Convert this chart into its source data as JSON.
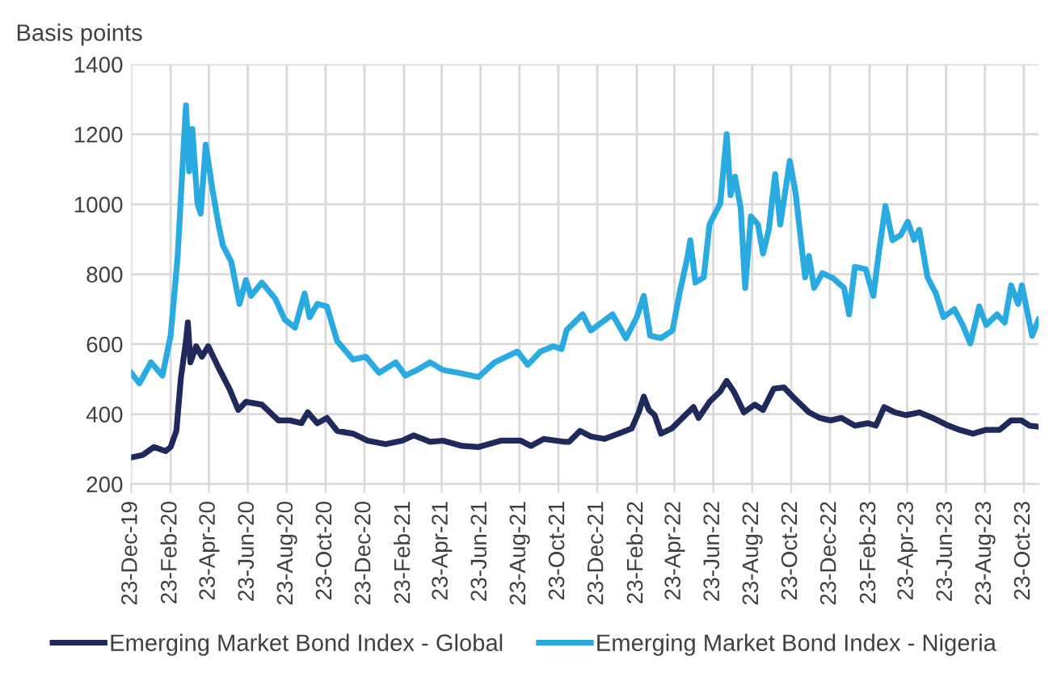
{
  "chart_data": {
    "type": "line",
    "ylabel": "Basis points",
    "ylim": [
      200,
      1400
    ],
    "yticks": [
      200,
      400,
      600,
      800,
      1000,
      1200,
      1400
    ],
    "xlim": [
      "2019-12-23",
      "2023-11-15"
    ],
    "xticks": [
      {
        "value": "2019-12-23",
        "label": "23-Dec-19"
      },
      {
        "value": "2020-02-23",
        "label": "23-Feb-20"
      },
      {
        "value": "2020-04-23",
        "label": "23-Apr-20"
      },
      {
        "value": "2020-06-23",
        "label": "23-Jun-20"
      },
      {
        "value": "2020-08-23",
        "label": "23-Aug-20"
      },
      {
        "value": "2020-10-23",
        "label": "23-Oct-20"
      },
      {
        "value": "2020-12-23",
        "label": "23-Dec-20"
      },
      {
        "value": "2021-02-23",
        "label": "23-Feb-21"
      },
      {
        "value": "2021-04-23",
        "label": "23-Apr-21"
      },
      {
        "value": "2021-06-23",
        "label": "23-Jun-21"
      },
      {
        "value": "2021-08-23",
        "label": "23-Aug-21"
      },
      {
        "value": "2021-10-23",
        "label": "23-Oct-21"
      },
      {
        "value": "2021-12-23",
        "label": "23-Dec-21"
      },
      {
        "value": "2022-02-23",
        "label": "23-Feb-22"
      },
      {
        "value": "2022-04-23",
        "label": "23-Apr-22"
      },
      {
        "value": "2022-06-23",
        "label": "23-Jun-22"
      },
      {
        "value": "2022-08-23",
        "label": "23-Aug-22"
      },
      {
        "value": "2022-10-23",
        "label": "23-Oct-22"
      },
      {
        "value": "2022-12-23",
        "label": "23-Dec-22"
      },
      {
        "value": "2023-02-23",
        "label": "23-Feb-23"
      },
      {
        "value": "2023-04-23",
        "label": "23-Apr-23"
      },
      {
        "value": "2023-06-23",
        "label": "23-Jun-23"
      },
      {
        "value": "2023-08-23",
        "label": "23-Aug-23"
      },
      {
        "value": "2023-10-23",
        "label": "23-Oct-23"
      }
    ],
    "grid": true,
    "legend": "bottom",
    "marker": "none",
    "line_style": "solid",
    "series": [
      {
        "name": "Emerging Market Bond Index - Global",
        "color": "#1f2a5c",
        "x": [
          "2019-12-23",
          "2020-01-10",
          "2020-01-28",
          "2020-02-15",
          "2020-02-23",
          "2020-03-03",
          "2020-03-10",
          "2020-03-18",
          "2020-03-21",
          "2020-03-25",
          "2020-04-03",
          "2020-04-12",
          "2020-04-22",
          "2020-05-08",
          "2020-05-25",
          "2020-06-08",
          "2020-06-20",
          "2020-07-15",
          "2020-08-10",
          "2020-08-28",
          "2020-09-15",
          "2020-09-25",
          "2020-10-10",
          "2020-10-25",
          "2020-11-10",
          "2020-12-05",
          "2020-12-28",
          "2021-01-25",
          "2021-02-20",
          "2021-03-10",
          "2021-04-05",
          "2021-04-25",
          "2021-05-25",
          "2021-06-20",
          "2021-07-25",
          "2021-08-25",
          "2021-09-10",
          "2021-09-30",
          "2021-10-20",
          "2021-11-01",
          "2021-11-09",
          "2021-11-26",
          "2021-12-13",
          "2022-01-03",
          "2022-01-25",
          "2022-02-15",
          "2022-02-26",
          "2022-03-06",
          "2022-03-14",
          "2022-03-23",
          "2022-04-02",
          "2022-04-19",
          "2022-05-10",
          "2022-05-23",
          "2022-05-31",
          "2022-06-17",
          "2022-07-04",
          "2022-07-14",
          "2022-07-25",
          "2022-08-10",
          "2022-08-27",
          "2022-09-09",
          "2022-09-26",
          "2022-10-12",
          "2022-10-30",
          "2022-11-20",
          "2022-12-07",
          "2022-12-24",
          "2023-01-10",
          "2023-01-31",
          "2023-02-20",
          "2023-03-05",
          "2023-03-18",
          "2023-04-04",
          "2023-04-21",
          "2023-05-12",
          "2023-06-02",
          "2023-06-23",
          "2023-07-14",
          "2023-08-04",
          "2023-08-25",
          "2023-09-15",
          "2023-10-03",
          "2023-10-19",
          "2023-11-01",
          "2023-11-15"
        ],
        "values": [
          276,
          283,
          306,
          294,
          306,
          352,
          503,
          609,
          662,
          548,
          594,
          564,
          594,
          533,
          473,
          412,
          435,
          427,
          382,
          382,
          374,
          405,
          374,
          389,
          352,
          344,
          324,
          314,
          324,
          339,
          321,
          324,
          309,
          306,
          324,
          324,
          309,
          329,
          324,
          321,
          321,
          352,
          336,
          329,
          344,
          359,
          405,
          450,
          412,
          397,
          344,
          359,
          397,
          420,
          389,
          435,
          465,
          495,
          465,
          405,
          427,
          412,
          473,
          476,
          442,
          405,
          389,
          382,
          389,
          367,
          374,
          367,
          420,
          405,
          397,
          405,
          389,
          370,
          355,
          344,
          355,
          355,
          382,
          382,
          367,
          364
        ]
      },
      {
        "name": "Emerging Market Bond Index - Nigeria",
        "color": "#29abe2",
        "x": [
          "2019-12-23",
          "2020-01-05",
          "2020-01-23",
          "2020-02-10",
          "2020-02-23",
          "2020-03-05",
          "2020-03-12",
          "2020-03-18",
          "2020-03-23",
          "2020-03-28",
          "2020-04-05",
          "2020-04-10",
          "2020-04-18",
          "2020-04-28",
          "2020-05-08",
          "2020-05-15",
          "2020-05-28",
          "2020-06-10",
          "2020-06-20",
          "2020-06-28",
          "2020-07-15",
          "2020-08-05",
          "2020-08-20",
          "2020-09-05",
          "2020-09-20",
          "2020-09-28",
          "2020-10-10",
          "2020-10-25",
          "2020-11-10",
          "2020-12-05",
          "2020-12-25",
          "2021-01-15",
          "2021-02-10",
          "2021-02-25",
          "2021-03-15",
          "2021-04-05",
          "2021-04-25",
          "2021-05-20",
          "2021-06-20",
          "2021-07-15",
          "2021-08-20",
          "2021-09-05",
          "2021-09-25",
          "2021-10-15",
          "2021-10-28",
          "2021-11-05",
          "2021-11-30",
          "2021-12-13",
          "2021-12-30",
          "2022-01-16",
          "2022-02-06",
          "2022-02-23",
          "2022-03-06",
          "2022-03-16",
          "2022-04-02",
          "2022-04-20",
          "2022-05-01",
          "2022-05-12",
          "2022-05-18",
          "2022-05-26",
          "2022-06-08",
          "2022-06-17",
          "2022-07-04",
          "2022-07-14",
          "2022-07-20",
          "2022-07-27",
          "2022-08-05",
          "2022-08-12",
          "2022-08-21",
          "2022-09-01",
          "2022-09-09",
          "2022-09-18",
          "2022-09-28",
          "2022-10-06",
          "2022-10-21",
          "2022-10-30",
          "2022-11-14",
          "2022-11-20",
          "2022-11-28",
          "2022-12-11",
          "2022-12-28",
          "2023-01-14",
          "2023-01-22",
          "2023-01-31",
          "2023-02-17",
          "2023-03-01",
          "2023-03-10",
          "2023-03-20",
          "2023-03-31",
          "2023-04-13",
          "2023-04-24",
          "2023-05-04",
          "2023-05-12",
          "2023-05-25",
          "2023-06-07",
          "2023-06-19",
          "2023-07-06",
          "2023-07-19",
          "2023-07-31",
          "2023-08-14",
          "2023-08-25",
          "2023-09-11",
          "2023-09-23",
          "2023-10-03",
          "2023-10-14",
          "2023-10-20",
          "2023-11-05",
          "2023-11-15"
        ],
        "values": [
          518,
          488,
          548,
          510,
          624,
          852,
          1086,
          1283,
          1094,
          1215,
          1003,
          973,
          1170,
          1048,
          942,
          882,
          836,
          715,
          783,
          738,
          776,
          730,
          670,
          647,
          745,
          677,
          715,
          708,
          609,
          556,
          564,
          518,
          548,
          510,
          526,
          548,
          526,
          518,
          506,
          548,
          579,
          541,
          579,
          594,
          586,
          640,
          685,
          639,
          662,
          685,
          617,
          677,
          738,
          624,
          617,
          639,
          745,
          836,
          897,
          776,
          791,
          942,
          1003,
          1200,
          1026,
          1079,
          988,
          761,
          965,
          942,
          859,
          927,
          1086,
          942,
          1124,
          1033,
          791,
          852,
          761,
          803,
          788,
          761,
          685,
          821,
          814,
          738,
          867,
          995,
          897,
          912,
          950,
          898,
          927,
          791,
          745,
          677,
          700,
          655,
          602,
          708,
          655,
          685,
          662,
          768,
          715,
          768,
          624,
          670
        ]
      }
    ]
  }
}
